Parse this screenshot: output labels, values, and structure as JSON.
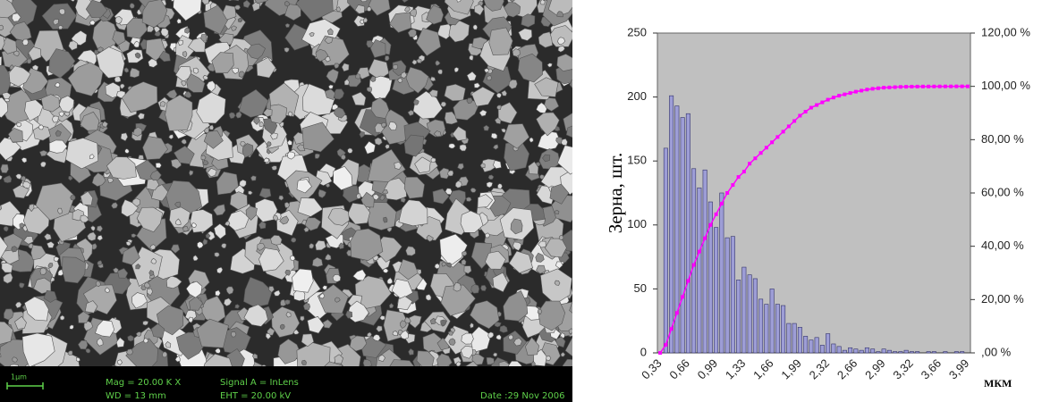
{
  "sem_image": {
    "scale_bar": "1µm",
    "mag": "Mag =  20.00 K X",
    "wd": "WD =   13 mm",
    "signal": "Signal A = InLens",
    "eht": "EHT = 20.00 kV",
    "date": "Date :29 Nov 2006"
  },
  "chart_data": {
    "type": "bar",
    "y_label": "Зерна, шт.",
    "x_label": "МКМ",
    "categories": [
      "0,33",
      null,
      null,
      null,
      null,
      "0,66",
      null,
      null,
      null,
      null,
      "0,99",
      null,
      null,
      null,
      null,
      "1,33",
      null,
      null,
      null,
      null,
      "1,66",
      null,
      null,
      null,
      null,
      "1,99",
      null,
      null,
      null,
      null,
      "2,32",
      null,
      null,
      null,
      null,
      "2,66",
      null,
      null,
      null,
      null,
      "2,99",
      null,
      null,
      null,
      null,
      "3,32",
      null,
      null,
      null,
      null,
      "3,66",
      null,
      null,
      null,
      null,
      "3,99"
    ],
    "series": [
      {
        "color": "#9d9dd6",
        "values": [
          0,
          160,
          201,
          193,
          184,
          187,
          144,
          129,
          143,
          118,
          98,
          125,
          90,
          91,
          57,
          67,
          61,
          58,
          42,
          38,
          50,
          38,
          37,
          23,
          23,
          20,
          13,
          10,
          12,
          6,
          15,
          7,
          5,
          2,
          4,
          3,
          2,
          4,
          3,
          1,
          3,
          2,
          1,
          1,
          2,
          1,
          1,
          0,
          1,
          1,
          0,
          1,
          0,
          1,
          1,
          0
        ]
      },
      {
        "color": "#ff00ff",
        "axis": "y2",
        "values": [
          0,
          3,
          9,
          15,
          21,
          27,
          33,
          38,
          43,
          48,
          52,
          56,
          60,
          63,
          66,
          68,
          71,
          73,
          75,
          77,
          79,
          81,
          83,
          85,
          87,
          89,
          90.5,
          92,
          93,
          94,
          95,
          95.8,
          96.5,
          97,
          97.5,
          98,
          98.4,
          98.8,
          99.1,
          99.3,
          99.5,
          99.6,
          99.7,
          99.8,
          99.85,
          99.9,
          99.92,
          99.94,
          99.95,
          99.96,
          99.97,
          99.98,
          99.99,
          100,
          100,
          100
        ]
      }
    ],
    "ylim": [
      0,
      250
    ],
    "yticks": [
      0,
      50,
      100,
      150,
      200,
      250
    ],
    "y2lim": [
      0,
      120
    ],
    "y2ticks": [
      {
        "value": 0,
        "label": ",00 %"
      },
      {
        "value": 20,
        "label": "20,00 %"
      },
      {
        "value": 40,
        "label": "40,00 %"
      },
      {
        "value": 60,
        "label": "60,00 %"
      },
      {
        "value": 80,
        "label": "80,00 %"
      },
      {
        "value": 100,
        "label": "100,00 %"
      },
      {
        "value": 120,
        "label": "120,00 %"
      }
    ],
    "plot_background": "#c0c0c0"
  }
}
